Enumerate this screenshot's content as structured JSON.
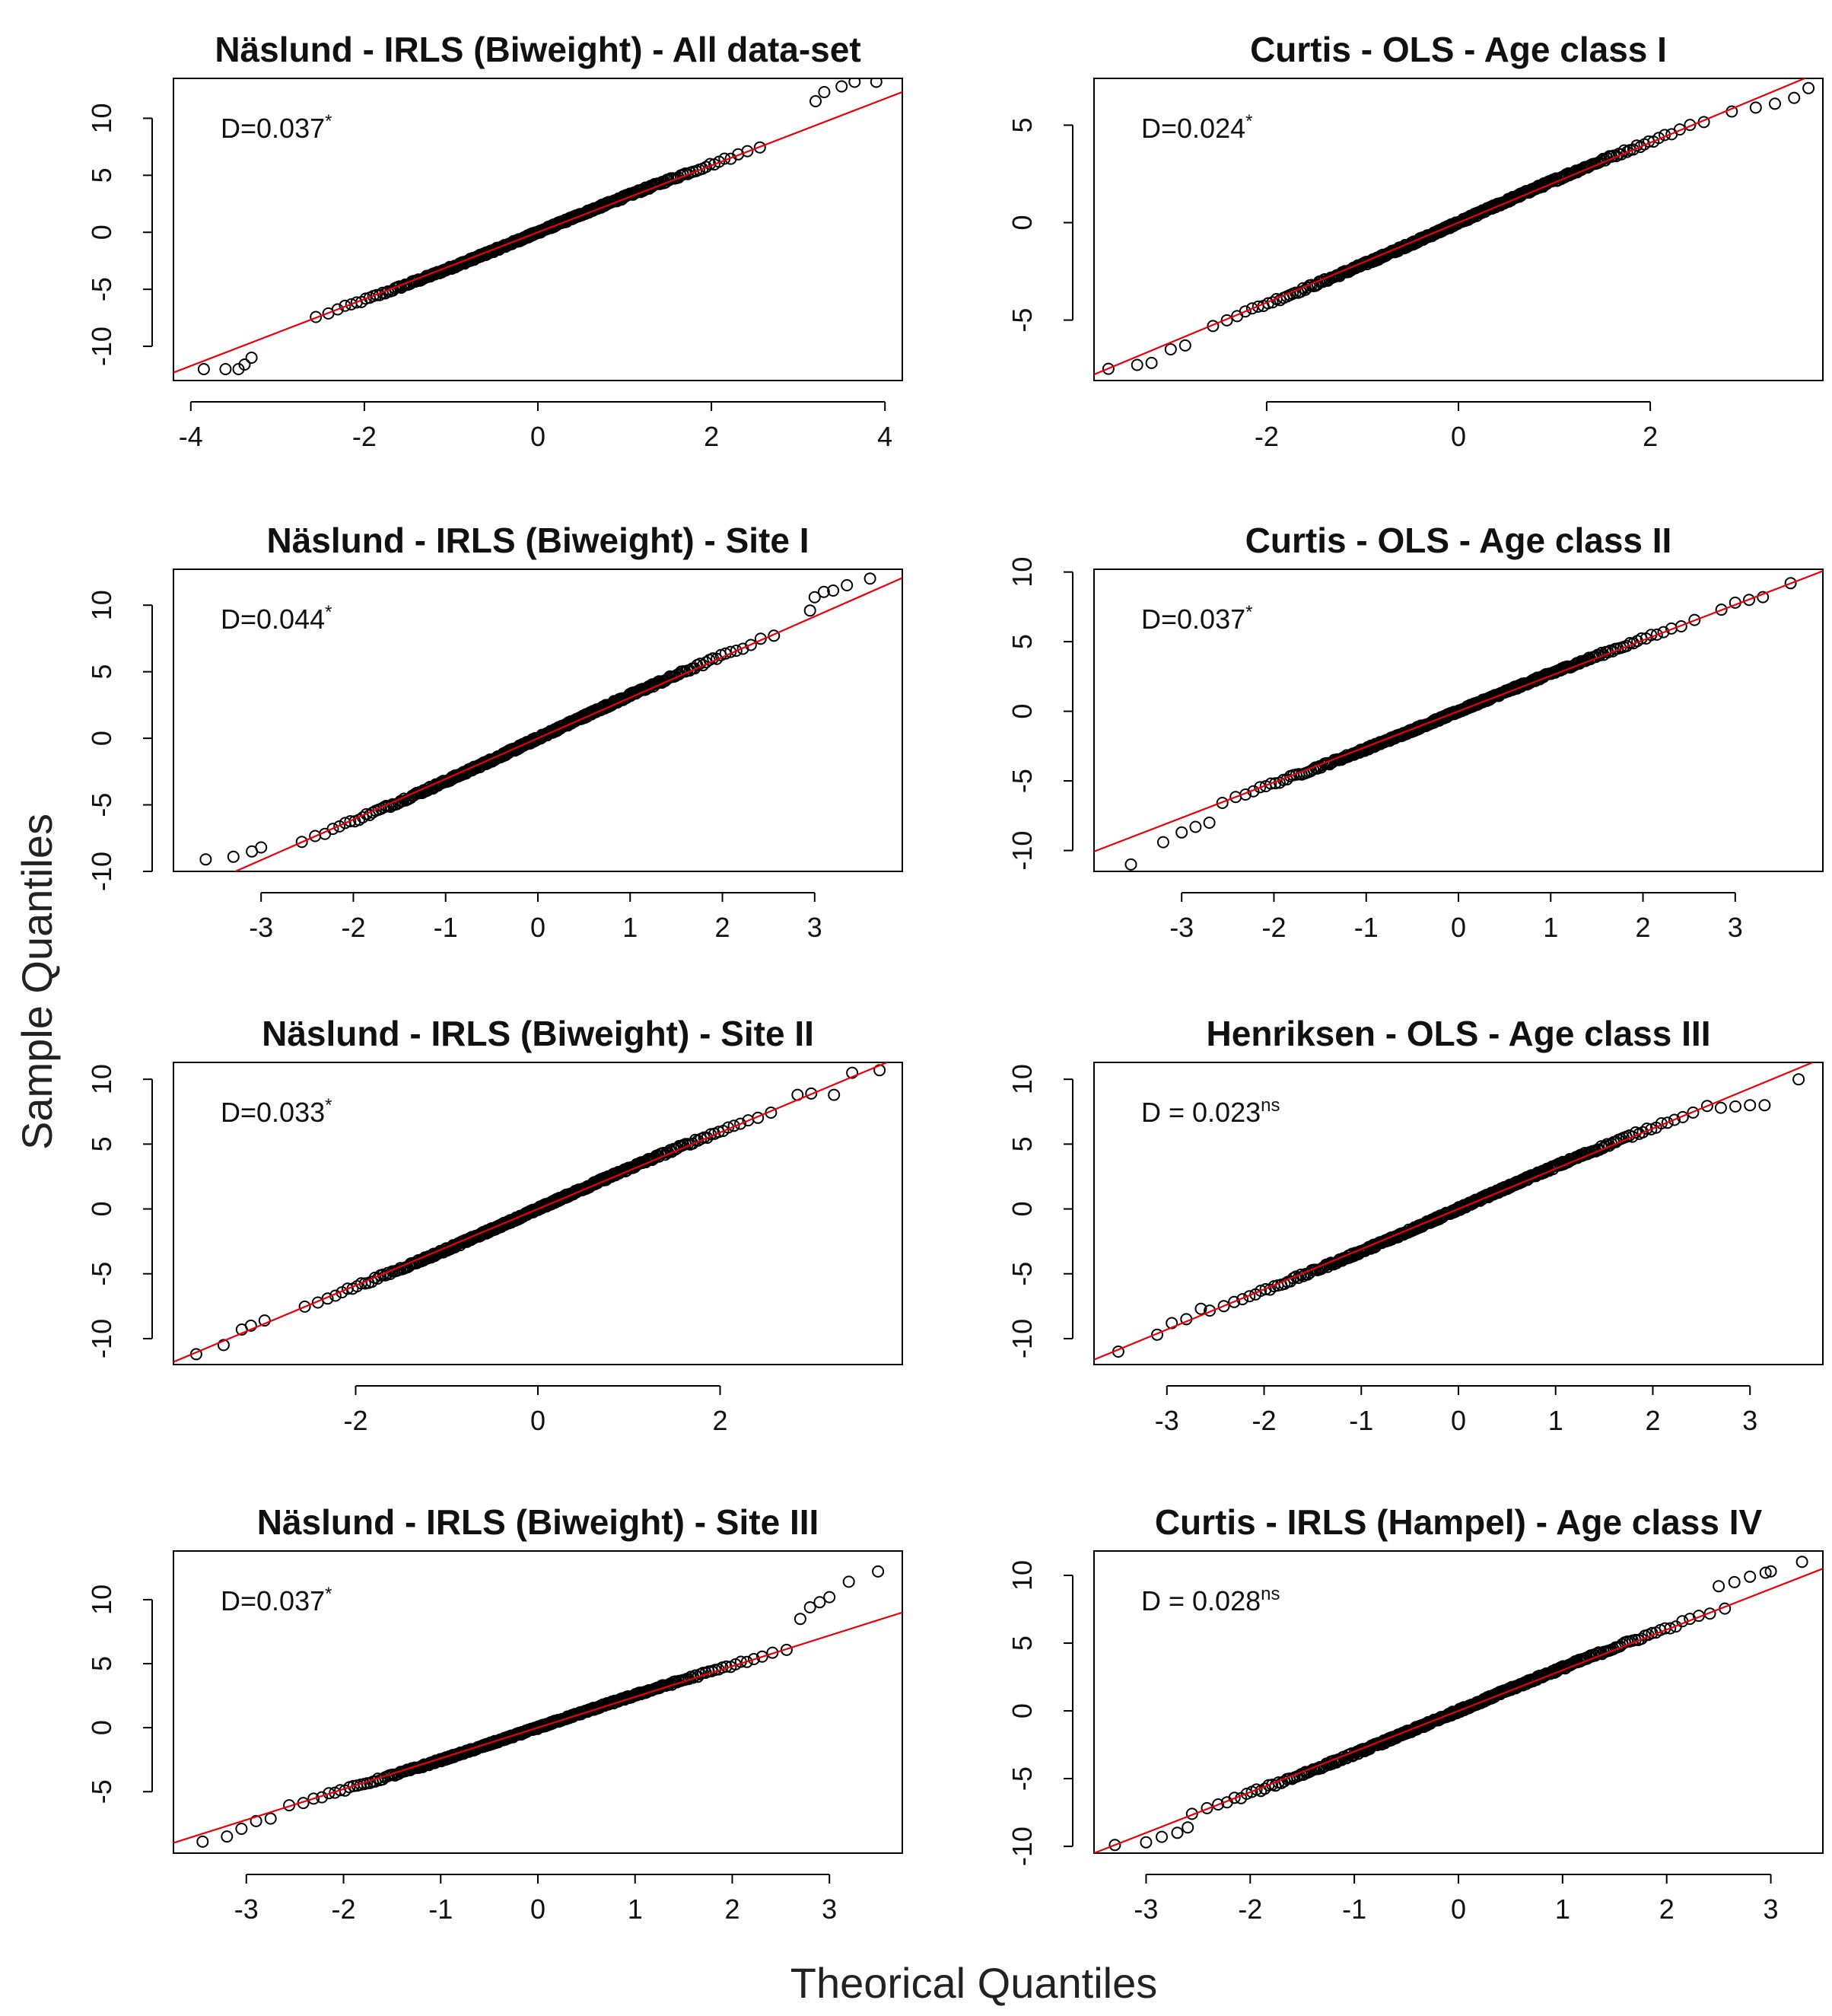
{
  "figure": {
    "xlabel": "Theorical Quantiles",
    "ylabel": "Sample Quantiles"
  },
  "chart_data": [
    {
      "type": "scatter",
      "title": "Näslund - IRLS (Biweight) - All data-set",
      "annotation": {
        "text": "D=0.037",
        "sup": "*"
      },
      "xticks": [
        -4,
        -2,
        0,
        2,
        4
      ],
      "yticks": [
        -10,
        -5,
        0,
        5,
        10
      ],
      "xlim": [
        -4.2,
        4.2
      ],
      "ylim": [
        -13,
        13.5
      ],
      "line": {
        "intercept": 0,
        "slope": 2.93
      },
      "series": [
        {
          "name": "Q-Q points",
          "tail_points": [
            [
              -3.85,
              -12
            ],
            [
              -3.6,
              -12
            ],
            [
              -3.45,
              -12
            ],
            [
              -3.38,
              -11.6
            ],
            [
              -3.3,
              -11
            ],
            [
              3.2,
              11.5
            ],
            [
              3.3,
              12.3
            ],
            [
              3.5,
              12.8
            ],
            [
              3.65,
              13.2
            ],
            [
              3.9,
              13.2
            ]
          ]
        }
      ]
    },
    {
      "type": "scatter",
      "title": "Curtis - OLS - Age class I",
      "annotation": {
        "text": "D=0.024",
        "sup": "*"
      },
      "xticks": [
        -2,
        0,
        2
      ],
      "yticks": [
        -5,
        0,
        5
      ],
      "xlim": [
        -3.8,
        3.8
      ],
      "ylim": [
        -8.1,
        7.4
      ],
      "line": {
        "intercept": 0,
        "slope": 2.05
      },
      "series": [
        {
          "name": "Q-Q points",
          "tail_points": [
            [
              -3.65,
              -7.5
            ],
            [
              -3.35,
              -7.3
            ],
            [
              -3.2,
              -7.2
            ],
            [
              -3.0,
              -6.5
            ],
            [
              -2.85,
              -6.3
            ],
            [
              2.85,
              5.7
            ],
            [
              3.1,
              5.9
            ],
            [
              3.3,
              6.1
            ],
            [
              3.5,
              6.4
            ],
            [
              3.65,
              6.9
            ]
          ]
        }
      ]
    },
    {
      "type": "scatter",
      "title": "Näslund - IRLS (Biweight) - Site I",
      "annotation": {
        "text": "D=0.044",
        "sup": "*"
      },
      "xticks": [
        -3,
        -2,
        -1,
        0,
        1,
        2,
        3
      ],
      "yticks": [
        -10,
        -5,
        0,
        5,
        10
      ],
      "xlim": [
        -3.95,
        3.95
      ],
      "ylim": [
        -10,
        12.7
      ],
      "line": {
        "intercept": 0,
        "slope": 3.05
      },
      "series": [
        {
          "name": "Q-Q points",
          "tail_points": [
            [
              -3.6,
              -9.1
            ],
            [
              -3.3,
              -8.9
            ],
            [
              -3.1,
              -8.5
            ],
            [
              -3.0,
              -8.2
            ],
            [
              2.95,
              9.6
            ],
            [
              3.0,
              10.6
            ],
            [
              3.1,
              11.0
            ],
            [
              3.2,
              11.1
            ],
            [
              3.35,
              11.5
            ],
            [
              3.6,
              12.0
            ]
          ]
        }
      ]
    },
    {
      "type": "scatter",
      "title": "Curtis - OLS - Age class II",
      "annotation": {
        "text": "D=0.037",
        "sup": "*"
      },
      "xticks": [
        -3,
        -2,
        -1,
        0,
        1,
        2,
        3
      ],
      "yticks": [
        -10,
        -5,
        0,
        5,
        10
      ],
      "xlim": [
        -3.95,
        3.95
      ],
      "ylim": [
        -11.5,
        10.2
      ],
      "line": {
        "intercept": 0,
        "slope": 2.55
      },
      "series": [
        {
          "name": "Q-Q points",
          "tail_points": [
            [
              -3.55,
              -11
            ],
            [
              -3.2,
              -9.4
            ],
            [
              -3.0,
              -8.7
            ],
            [
              -2.85,
              -8.3
            ],
            [
              -2.7,
              -8.0
            ],
            [
              2.85,
              7.3
            ],
            [
              3.0,
              7.8
            ],
            [
              3.15,
              8.0
            ],
            [
              3.3,
              8.2
            ],
            [
              3.6,
              9.2
            ]
          ]
        }
      ]
    },
    {
      "type": "scatter",
      "title": "Näslund - IRLS (Biweight) - Site II",
      "annotation": {
        "text": "D=0.033",
        "sup": "*"
      },
      "xticks": [
        -2,
        0,
        2
      ],
      "yticks": [
        -10,
        -5,
        0,
        5,
        10
      ],
      "xlim": [
        -4.0,
        4.0
      ],
      "ylim": [
        -12,
        11.3
      ],
      "line": {
        "intercept": 0,
        "slope": 2.95
      },
      "series": [
        {
          "name": "Q-Q points",
          "tail_points": [
            [
              -3.75,
              -11.2
            ],
            [
              -3.45,
              -10.5
            ],
            [
              -3.25,
              -9.3
            ],
            [
              -3.15,
              -9.0
            ],
            [
              -3.0,
              -8.6
            ],
            [
              2.85,
              8.8
            ],
            [
              3.0,
              8.9
            ],
            [
              3.25,
              8.8
            ],
            [
              3.45,
              10.5
            ],
            [
              3.75,
              10.7
            ]
          ]
        }
      ]
    },
    {
      "type": "scatter",
      "title": "Henriksen - OLS - Age class III",
      "annotation": {
        "text": "D = 0.023",
        "sup": "ns"
      },
      "xticks": [
        -3,
        -2,
        -1,
        0,
        1,
        2,
        3
      ],
      "yticks": [
        -10,
        -5,
        0,
        5,
        10
      ],
      "xlim": [
        -3.75,
        3.75
      ],
      "ylim": [
        -12,
        11.3
      ],
      "line": {
        "intercept": 0,
        "slope": 3.1
      },
      "series": [
        {
          "name": "Q-Q points",
          "tail_points": [
            [
              -3.5,
              -11
            ],
            [
              -3.1,
              -9.7
            ],
            [
              -2.95,
              -8.8
            ],
            [
              -2.8,
              -8.5
            ],
            [
              -2.65,
              -7.7
            ],
            [
              2.7,
              7.8
            ],
            [
              2.85,
              7.9
            ],
            [
              3.0,
              8.0
            ],
            [
              3.15,
              8.0
            ],
            [
              3.5,
              10.0
            ]
          ]
        }
      ]
    },
    {
      "type": "scatter",
      "title": "Näslund - IRLS (Biweight) - Site III",
      "annotation": {
        "text": "D=0.037",
        "sup": "*"
      },
      "xticks": [
        -3,
        -2,
        -1,
        0,
        1,
        2,
        3
      ],
      "yticks": [
        -5,
        0,
        5,
        10
      ],
      "xlim": [
        -3.75,
        3.75
      ],
      "ylim": [
        -9.8,
        13.8
      ],
      "line": {
        "intercept": 0,
        "slope": 2.4
      },
      "series": [
        {
          "name": "Q-Q points",
          "tail_points": [
            [
              -3.45,
              -8.9
            ],
            [
              -3.2,
              -8.5
            ],
            [
              -3.05,
              -7.9
            ],
            [
              -2.9,
              -7.3
            ],
            [
              -2.75,
              -7.1
            ],
            [
              2.7,
              8.5
            ],
            [
              2.8,
              9.4
            ],
            [
              2.9,
              9.8
            ],
            [
              3.0,
              10.2
            ],
            [
              3.2,
              11.4
            ],
            [
              3.5,
              12.2
            ]
          ]
        }
      ]
    },
    {
      "type": "scatter",
      "title": "Curtis - IRLS (Hampel) - Age class IV",
      "annotation": {
        "text": "D = 0.028",
        "sup": "ns"
      },
      "xticks": [
        -3,
        -2,
        -1,
        0,
        1,
        2,
        3
      ],
      "yticks": [
        -10,
        -5,
        0,
        5,
        10
      ],
      "xlim": [
        -3.5,
        3.5
      ],
      "ylim": [
        -10.5,
        11.8
      ],
      "line": {
        "intercept": 0,
        "slope": 3.0
      },
      "series": [
        {
          "name": "Q-Q points",
          "tail_points": [
            [
              -3.3,
              -9.9
            ],
            [
              -3.0,
              -9.7
            ],
            [
              -2.85,
              -9.3
            ],
            [
              -2.7,
              -9.0
            ],
            [
              -2.6,
              -8.6
            ],
            [
              2.5,
              9.2
            ],
            [
              2.65,
              9.5
            ],
            [
              2.8,
              9.9
            ],
            [
              2.95,
              10.2
            ],
            [
              3.0,
              10.3
            ],
            [
              3.3,
              11.0
            ]
          ]
        }
      ]
    }
  ]
}
